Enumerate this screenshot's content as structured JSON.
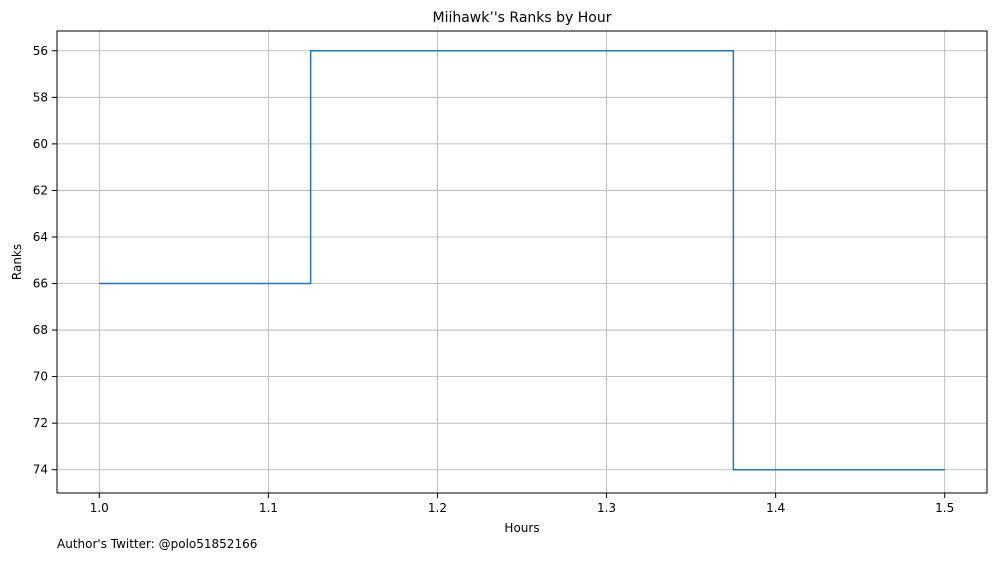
{
  "chart_data": {
    "type": "line",
    "step": "mid",
    "title": "Miihawk’'s Ranks by Hour",
    "xlabel": "Hours",
    "ylabel": "Ranks",
    "xlim": [
      0.975,
      1.525
    ],
    "ylim": [
      75,
      55.15
    ],
    "y_inverted": true,
    "x_ticks": [
      1.0,
      1.1,
      1.2,
      1.3,
      1.4,
      1.5
    ],
    "x_tick_labels": [
      "1.0",
      "1.1",
      "1.2",
      "1.3",
      "1.4",
      "1.5"
    ],
    "y_ticks": [
      56,
      58,
      60,
      62,
      64,
      66,
      68,
      70,
      72,
      74
    ],
    "y_tick_labels": [
      "56",
      "58",
      "60",
      "62",
      "64",
      "66",
      "68",
      "70",
      "72",
      "74"
    ],
    "grid": true,
    "series": [
      {
        "x": [
          1.0,
          1.25,
          1.5
        ],
        "y": [
          66,
          56,
          74
        ],
        "color": "#1f77b4"
      }
    ]
  },
  "footer": {
    "author_text": "Author's Twitter: @polo51852166"
  }
}
